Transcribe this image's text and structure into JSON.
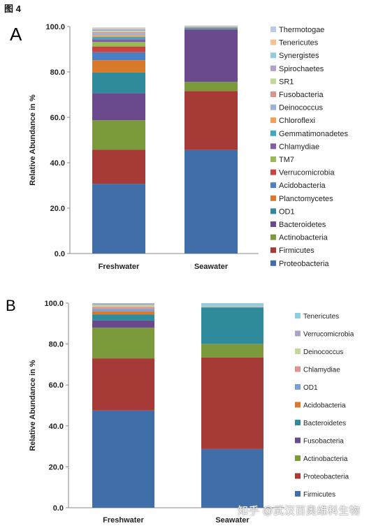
{
  "figure_label": "图 4",
  "watermark": "知乎 @武汉百奥维科生物",
  "chart_data": [
    {
      "type": "bar",
      "stacked": true,
      "panel": "A",
      "title": "",
      "xlabel": "",
      "ylabel": "Relative Abundance in %",
      "ylim": [
        0,
        100
      ],
      "yticks": [
        "0.0",
        "20.0",
        "40.0",
        "60.0",
        "80.0",
        "100.0"
      ],
      "categories": [
        "Freshwater",
        "Seawater"
      ],
      "legend_position": "right",
      "series": [
        {
          "name": "Proteobacteria",
          "color": "#3f6ea8",
          "values": [
            30.7,
            45.6
          ]
        },
        {
          "name": "Firmicutes",
          "color": "#a53a37",
          "values": [
            15.0,
            26.0
          ]
        },
        {
          "name": "Actinobacteria",
          "color": "#7a9a3c",
          "values": [
            13.0,
            4.0
          ]
        },
        {
          "name": "Bacteroidetes",
          "color": "#6a4a8c",
          "values": [
            12.0,
            23.0
          ]
        },
        {
          "name": "OD1",
          "color": "#2f8a9c",
          "values": [
            9.0,
            0.3
          ]
        },
        {
          "name": "Planctomycetes",
          "color": "#d97a2a",
          "values": [
            5.5,
            0.1
          ]
        },
        {
          "name": "Acidobacteria",
          "color": "#4a7fc4",
          "values": [
            3.5,
            0.3
          ]
        },
        {
          "name": "Verrucomicrobia",
          "color": "#c9443f",
          "values": [
            2.5,
            0.1
          ]
        },
        {
          "name": "TM7",
          "color": "#98b956",
          "values": [
            2.0,
            0.1
          ]
        },
        {
          "name": "Chlamydiae",
          "color": "#7d5fa6",
          "values": [
            1.2,
            0.1
          ]
        },
        {
          "name": "Gemmatimonadetes",
          "color": "#3fa8c4",
          "values": [
            1.0,
            0.1
          ]
        },
        {
          "name": "Chloroflexi",
          "color": "#f0a050",
          "values": [
            0.8,
            0.1
          ]
        },
        {
          "name": "Deinococcus",
          "color": "#9ab3d6",
          "values": [
            0.8,
            0.1
          ]
        },
        {
          "name": "Fusobacteria",
          "color": "#d99594",
          "values": [
            0.6,
            0.1
          ]
        },
        {
          "name": "SR1",
          "color": "#c4d79b",
          "values": [
            0.5,
            0.1
          ]
        },
        {
          "name": "Spirochaetes",
          "color": "#b1a0c7",
          "values": [
            0.5,
            0.1
          ]
        },
        {
          "name": "Synergistes",
          "color": "#93cddd",
          "values": [
            0.4,
            0.1
          ]
        },
        {
          "name": "Tenericutes",
          "color": "#fac090",
          "values": [
            0.3,
            0.1
          ]
        },
        {
          "name": "Thermotogae",
          "color": "#b8cce4",
          "values": [
            0.3,
            0.1
          ]
        }
      ]
    },
    {
      "type": "bar",
      "stacked": true,
      "panel": "B",
      "title": "",
      "xlabel": "",
      "ylabel": "Relative Abundance in %",
      "ylim": [
        0,
        100
      ],
      "yticks": [
        "0.0",
        "20.0",
        "40.0",
        "60.0",
        "80.0",
        "100.0"
      ],
      "categories": [
        "Freshwater",
        "Seawater"
      ],
      "legend_position": "right",
      "series": [
        {
          "name": "Firmicutes",
          "color": "#3f6ea8",
          "values": [
            47.5,
            28.7
          ]
        },
        {
          "name": "Proteobacteria",
          "color": "#a53a37",
          "values": [
            25.5,
            44.7
          ]
        },
        {
          "name": "Actinobacteria",
          "color": "#7a9a3c",
          "values": [
            15.0,
            6.6
          ]
        },
        {
          "name": "Fusobacteria",
          "color": "#6a4a8c",
          "values": [
            3.5,
            0.1
          ]
        },
        {
          "name": "Bacteroidetes",
          "color": "#2f8a9c",
          "values": [
            3.0,
            17.8
          ]
        },
        {
          "name": "Acidobacteria",
          "color": "#d97a2a",
          "values": [
            1.5,
            0.1
          ]
        },
        {
          "name": "OD1",
          "color": "#7a9fd0",
          "values": [
            1.2,
            0.1
          ]
        },
        {
          "name": "Chlamydiae",
          "color": "#d99594",
          "values": [
            1.0,
            0.1
          ]
        },
        {
          "name": "Deinococcus",
          "color": "#c4d79b",
          "values": [
            0.9,
            0.1
          ]
        },
        {
          "name": "Verrucomicrobia",
          "color": "#b1a0c7",
          "values": [
            0.7,
            0.1
          ]
        },
        {
          "name": "Tenericutes",
          "color": "#93cddd",
          "values": [
            0.2,
            1.6
          ]
        }
      ]
    }
  ]
}
